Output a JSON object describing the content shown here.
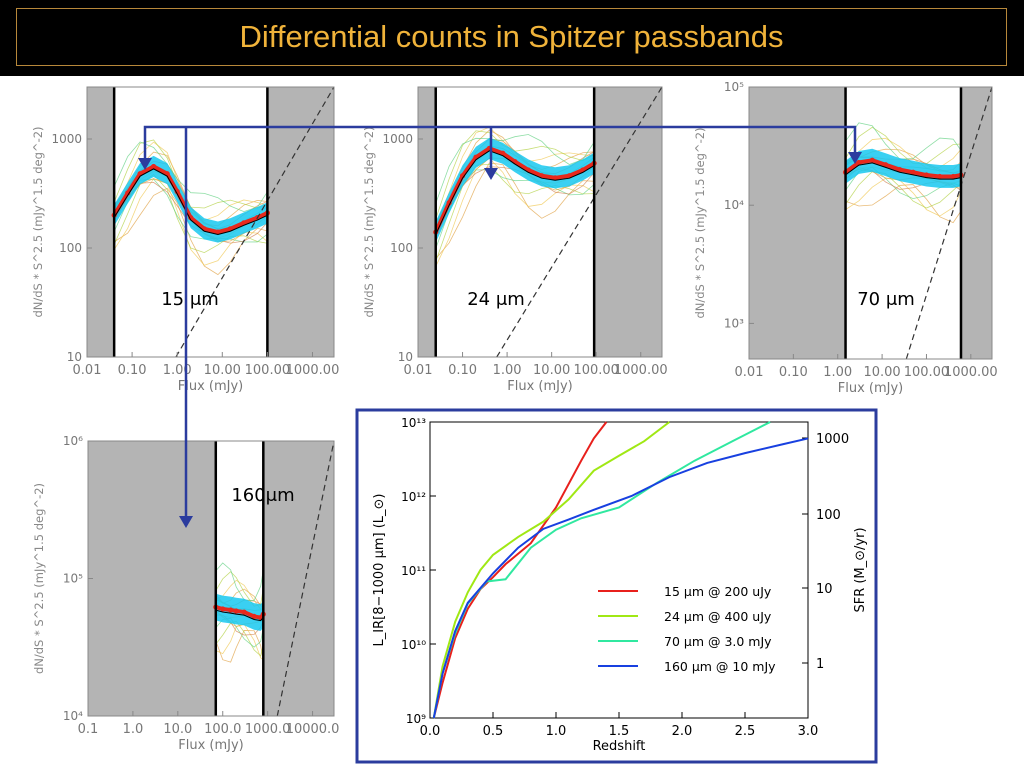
{
  "title": "Differential counts in Spitzer passbands",
  "colors": {
    "title": "#f0b33a",
    "arrow": "#2b3c9e",
    "median": "#e8281c",
    "band": "#18c8f0",
    "gray": "#b4b4b4"
  },
  "chart_data": [
    {
      "type": "line",
      "label": "15 μm",
      "xlabel": "Flux (mJy)",
      "ylabel": "dN/dS * S^2.5 (mJy^1.5 deg^-2)",
      "xlog": true,
      "ylog": true,
      "xlim": [
        0.01,
        3000
      ],
      "ylim": [
        10,
        3000
      ],
      "xticks": [
        "0.01",
        "0.10",
        "1.00",
        "10.00",
        "100.00",
        "1000.00"
      ],
      "yticks": [
        "10",
        "100",
        "1000"
      ],
      "valid_range": [
        0.04,
        100
      ],
      "series": [
        {
          "name": "median",
          "x": [
            0.04,
            0.08,
            0.15,
            0.3,
            0.6,
            1,
            2,
            4,
            8,
            15,
            30,
            60,
            100
          ],
          "y": [
            200,
            320,
            480,
            560,
            480,
            330,
            190,
            150,
            140,
            150,
            170,
            190,
            210
          ]
        }
      ]
    },
    {
      "type": "line",
      "label": "24 μm",
      "xlabel": "Flux (mJy)",
      "ylabel": "dN/dS * S^2.5 (mJy^1.5 deg^-2)",
      "xlog": true,
      "ylog": true,
      "xlim": [
        0.01,
        3000
      ],
      "ylim": [
        10,
        3000
      ],
      "xticks": [
        "0.01",
        "0.10",
        "1.00",
        "10.00",
        "100.00",
        "1000.00"
      ],
      "yticks": [
        "10",
        "100",
        "1000"
      ],
      "valid_range": [
        0.025,
        90
      ],
      "series": [
        {
          "name": "median",
          "x": [
            0.025,
            0.05,
            0.1,
            0.2,
            0.4,
            0.8,
            1.5,
            3,
            6,
            12,
            25,
            50,
            90
          ],
          "y": [
            140,
            260,
            460,
            680,
            820,
            740,
            620,
            520,
            460,
            440,
            460,
            520,
            600
          ]
        }
      ]
    },
    {
      "type": "line",
      "label": "70 μm",
      "xlabel": "Flux (mJy)",
      "ylabel": "dN/dS * S^2.5 (mJy^1.5 deg^-2)",
      "xlog": true,
      "ylog": true,
      "xlim": [
        0.01,
        3000
      ],
      "ylim": [
        500,
        100000
      ],
      "xticks": [
        "0.01",
        "0.10",
        "1.00",
        "10.00",
        "100.00",
        "1000.00"
      ],
      "yticks": [
        "10³",
        "10⁴",
        "10⁵"
      ],
      "valid_range": [
        1.5,
        600
      ],
      "series": [
        {
          "name": "median",
          "x": [
            1.5,
            3,
            6,
            12,
            25,
            50,
            100,
            200,
            400,
            600
          ],
          "y": [
            19000,
            23000,
            24000,
            22000,
            20000,
            19000,
            18000,
            17500,
            17500,
            18000
          ]
        }
      ]
    },
    {
      "type": "line",
      "label": "160μm",
      "xlabel": "Flux (mJy)",
      "ylabel": "dN/dS * S^2.5 (mJy^1.5 deg^-2)",
      "xlog": true,
      "ylog": true,
      "xlim": [
        0.1,
        30000
      ],
      "ylim": [
        10000,
        1000000
      ],
      "xticks": [
        "0.1",
        "1.0",
        "10.0",
        "100.0",
        "1000.0",
        "10000.0"
      ],
      "yticks": [
        "10⁴",
        "10⁵",
        "10⁶"
      ],
      "valid_range": [
        70,
        800
      ],
      "series": [
        {
          "name": "median",
          "x": [
            70,
            100,
            150,
            200,
            300,
            500,
            700,
            800
          ],
          "y": [
            62000,
            60000,
            59000,
            58000,
            57000,
            53000,
            52000,
            55000
          ]
        }
      ]
    },
    {
      "type": "line",
      "xlabel": "Redshift",
      "ylabel": "L_IR[8−1000 μm] (L_⊙)",
      "y2label": "SFR (M_⊙/yr)",
      "xlim": [
        0,
        3
      ],
      "ylim": [
        1000000000.0,
        10000000000000.0
      ],
      "ylog": true,
      "xticks": [
        "0.0",
        "0.5",
        "1.0",
        "1.5",
        "2.0",
        "2.5",
        "3.0"
      ],
      "yticks": [
        "10⁹",
        "10¹⁰",
        "10¹¹",
        "10¹²",
        "10¹³"
      ],
      "y2ticks": [
        "1",
        "10",
        "100",
        "1000"
      ],
      "series": [
        {
          "name": "15 μm @ 200 uJy",
          "color": "#e8201c",
          "x": [
            0.03,
            0.1,
            0.2,
            0.3,
            0.4,
            0.5,
            0.6,
            0.8,
            1.0,
            1.2,
            1.3,
            1.4
          ],
          "y": [
            1000000000.0,
            3000000000.0,
            12000000000.0,
            30000000000.0,
            55000000000.0,
            80000000000.0,
            120000000000.0,
            230000000000.0,
            700000000000.0,
            3000000000000.0,
            6000000000000.0,
            10000000000000.0
          ]
        },
        {
          "name": "24 μm @ 400 uJy",
          "color": "#a0e814",
          "x": [
            0.03,
            0.1,
            0.2,
            0.3,
            0.4,
            0.5,
            0.7,
            0.9,
            1.1,
            1.3,
            1.5,
            1.7,
            1.9
          ],
          "y": [
            1000000000.0,
            5000000000.0,
            20000000000.0,
            50000000000.0,
            100000000000.0,
            160000000000.0,
            280000000000.0,
            450000000000.0,
            900000000000.0,
            2200000000000.0,
            3500000000000.0,
            5500000000000.0,
            10000000000000.0
          ]
        },
        {
          "name": "70 μm @ 3.0 mJy",
          "color": "#30e8a0",
          "x": [
            0.03,
            0.1,
            0.2,
            0.3,
            0.45,
            0.6,
            0.8,
            1.0,
            1.2,
            1.5,
            1.8,
            2.1,
            2.4,
            2.7
          ],
          "y": [
            1000000000.0,
            4000000000.0,
            14000000000.0,
            35000000000.0,
            70000000000.0,
            75000000000.0,
            200000000000.0,
            350000000000.0,
            500000000000.0,
            700000000000.0,
            1500000000000.0,
            3000000000000.0,
            5500000000000.0,
            10000000000000.0
          ]
        },
        {
          "name": "160 μm @ 10 mJy",
          "color": "#1840e0",
          "x": [
            0.03,
            0.1,
            0.2,
            0.3,
            0.5,
            0.7,
            0.9,
            1.1,
            1.3,
            1.6,
            1.9,
            2.2,
            2.5,
            2.8,
            3.0
          ],
          "y": [
            1000000000.0,
            4000000000.0,
            15000000000.0,
            36000000000.0,
            90000000000.0,
            200000000000.0,
            360000000000.0,
            480000000000.0,
            650000000000.0,
            1000000000000.0,
            1800000000000.0,
            2800000000000.0,
            3800000000000.0,
            5000000000000.0,
            6000000000000.0
          ]
        }
      ]
    }
  ]
}
